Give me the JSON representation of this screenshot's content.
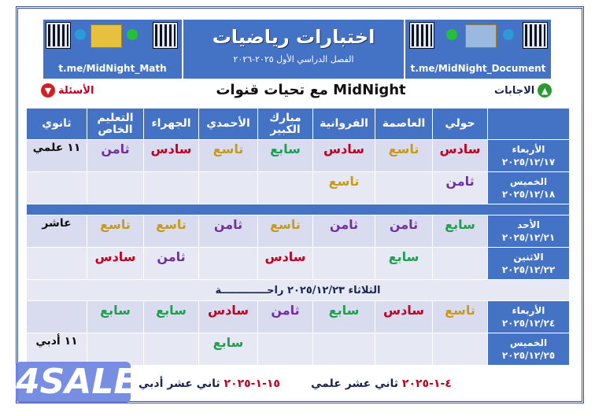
{
  "header": {
    "left_link": "t.me/MidNight_Math",
    "right_link": "t.me/MidNight_Document",
    "title": "اختبارات رياضيات",
    "subtitle": "الفصل الدراسي الأول ٢٠٢٥-٢٠٢٦"
  },
  "greeting": "مع تحيات قنوات MidNight",
  "answers_label": "الاجابات",
  "questions_label": "الأسئلة",
  "columns": [
    "",
    "حولي",
    "العاصمة",
    "الفروانية",
    "مبارك الكبير",
    "الأحمدي",
    "الجهراء",
    "التعليم الخاص",
    "ثانوي"
  ],
  "grade_colors": {
    "سادس": "#c00020",
    "تاسع": "#c89a1a",
    "سابع": "#1fa050",
    "ثامن": "#7030a0"
  },
  "rows": [
    {
      "day": "الأربعاء",
      "date": "٢٠٢٥/١٢/١٧",
      "cells": [
        "سادس",
        "تاسع",
        "سادس",
        "سابع",
        "تاسع",
        "سادس",
        "ثامن",
        "١١ علمي"
      ]
    },
    {
      "day": "الخميس",
      "date": "٢٠٢٥/١٢/١٨",
      "cells": [
        "ثامن",
        "",
        "تاسع",
        "",
        "",
        "",
        "",
        ""
      ]
    },
    {
      "separator": true
    },
    {
      "day": "الأحد",
      "date": "٢٠٢٥/١٢/٢١",
      "cells": [
        "سابع",
        "ثامن",
        "ثامن",
        "تاسع",
        "ثامن",
        "تاسع",
        "تاسع",
        "عاشر"
      ]
    },
    {
      "day": "الاثنين",
      "date": "٢٠٢٥/١٢/٢٢",
      "cells": [
        "",
        "سابع",
        "",
        "سادس",
        "",
        "ثامن",
        "سادس",
        ""
      ]
    },
    {
      "rest": "الثلاثاء ٢٠٢٥/١٢/٢٣          راحـــــــــــــة"
    },
    {
      "day": "الأربعاء",
      "date": "٢٠٢٥/١٢/٢٤",
      "cells": [
        "تاسع",
        "سادس",
        "سابع",
        "ثامن",
        "سادس",
        "سابع",
        "سابع",
        ""
      ]
    },
    {
      "day": "الخميس",
      "date": "٢٠٢٥/١٢/٢٥",
      "cells": [
        "",
        "",
        "",
        "",
        "سابع",
        "",
        "",
        "١١ أدبي"
      ]
    }
  ],
  "footer": {
    "science_date": "٤-١-٢٠٢٥",
    "science_label": "ثاني عشر علمي",
    "arts_date": "١٥-١-٢٠٢٥",
    "arts_label": "ثاني عشر أدبي"
  },
  "watermark": "4SALE"
}
